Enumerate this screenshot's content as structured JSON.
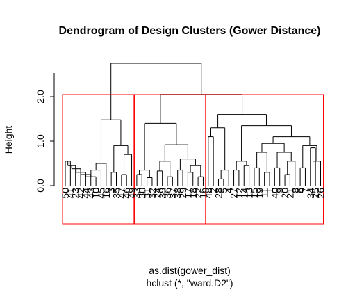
{
  "chart_data": {
    "type": "dendrogram",
    "title": "Dendrogram of Design Clusters (Gower Distance)",
    "ylabel": "Height",
    "xlabel_line1": "as.dist(gower_dist)",
    "xlabel_line2": "hclust (*, \"ward.D2\")",
    "yticks": [
      "0.0",
      "1.0",
      "2.0"
    ],
    "ylim": [
      0,
      2.9
    ],
    "rect_color": "#ff0000",
    "rect_count": 3,
    "leaves": [
      "50",
      "41",
      "23",
      "42",
      "44",
      "43",
      "10",
      "45",
      "16",
      "3",
      "35",
      "47",
      "46",
      "49",
      "33",
      "30",
      "31",
      "32",
      "24",
      "39",
      "36",
      "37",
      "38",
      "29",
      "17",
      "18",
      "22",
      "16",
      "48",
      "2",
      "28",
      "5",
      "4",
      "27",
      "12",
      "14",
      "13",
      "15",
      "19",
      "11",
      "1",
      "40",
      "9",
      "20",
      "21",
      "8",
      "6",
      "7",
      "34",
      "25",
      "26"
    ],
    "merge_heights_approx": [
      2.75,
      2.35,
      2.05,
      1.6,
      1.5,
      1.35,
      1.1,
      1.05,
      0.95,
      0.9,
      0.85,
      0.75
    ]
  }
}
